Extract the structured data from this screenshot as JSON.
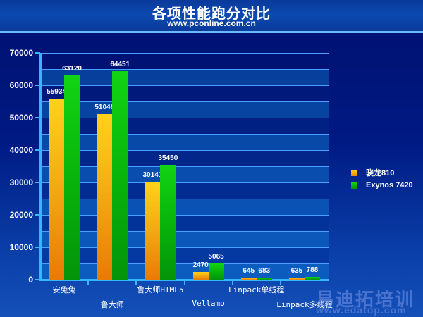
{
  "header": {
    "title": "各项性能跑分对比",
    "subtitle": "www.pconline.com.cn"
  },
  "watermark": {
    "text": "易迪拓培训",
    "url": "www.edatop.com"
  },
  "colors": {
    "series1": "#f4a812",
    "series2": "#08b40a",
    "axis": "#35b6ff",
    "background": "#001a84"
  },
  "chart_data": {
    "type": "bar",
    "title": "各项性能跑分对比",
    "subtitle": "www.pconline.com.cn",
    "xlabel": "",
    "ylabel": "",
    "ylim": [
      0,
      70000
    ],
    "yticks": [
      "0",
      "10000",
      "20000",
      "30000",
      "40000",
      "50000",
      "60000",
      "70000"
    ],
    "grid": true,
    "legend_position": "right",
    "categories": [
      "安兔兔",
      "鲁大师",
      "鲁大师HTML5",
      "Vellamo",
      "Linpack单线程",
      "Linpack多线程"
    ],
    "series": [
      {
        "name": "骁龙810",
        "values": [
          55934,
          51046,
          30141,
          2470,
          645,
          635
        ]
      },
      {
        "name": "Exynos 7420",
        "values": [
          63120,
          64451,
          35450,
          5065,
          683,
          788
        ]
      }
    ]
  },
  "legend": {
    "items": [
      {
        "label": "骁龙810"
      },
      {
        "label": "Exynos 7420"
      }
    ]
  }
}
